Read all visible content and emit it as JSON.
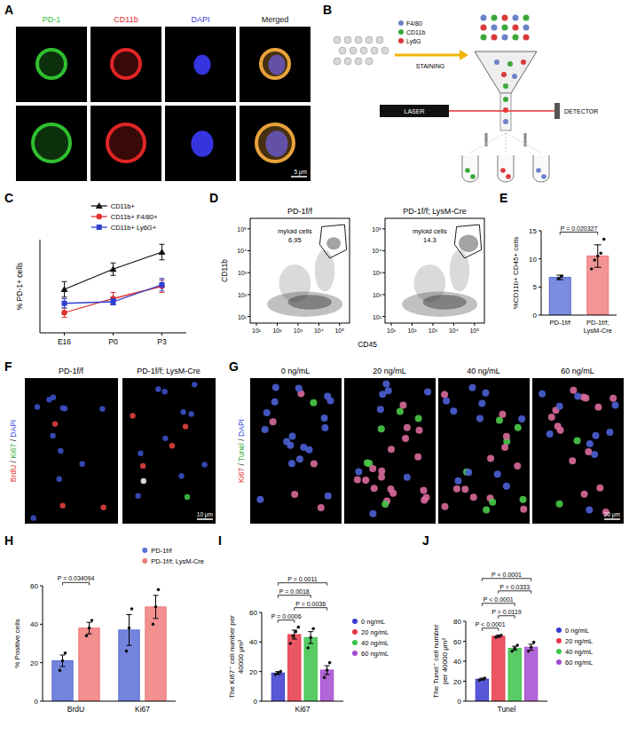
{
  "panels": {
    "A": {
      "label": "A",
      "channels": [
        "PD-1",
        "CD11b",
        "DAPI",
        "Merged"
      ],
      "colors": [
        "#2fbf2f",
        "#e02525",
        "#3535e0",
        "#111111"
      ],
      "scale_bar": "5 μm"
    },
    "B": {
      "label": "B",
      "markers": [
        "F4/80",
        "CD11b",
        "Ly6G"
      ],
      "colors": [
        "#6d83c9",
        "#3aa83a",
        "#d93a3a"
      ],
      "staining": "STAINING",
      "laser": "LASER",
      "detector": "DETECTOR"
    },
    "D": {
      "label": "D",
      "x_label": "CD45",
      "y_label": "CD11b",
      "xlim": [
        5,
        300000
      ],
      "ylim": [
        5,
        300000
      ],
      "xticks": [
        {
          "value": 10,
          "label": "10¹"
        },
        {
          "value": 100,
          "label": "10²"
        },
        {
          "value": 1000,
          "label": "10³"
        },
        {
          "value": 10000,
          "label": "10⁴"
        },
        {
          "value": 100000,
          "label": "10⁵"
        }
      ],
      "yticks": [
        {
          "value": 10,
          "label": "10¹"
        },
        {
          "value": 100,
          "label": "10²"
        },
        {
          "value": 1000,
          "label": "10³"
        },
        {
          "value": 10000,
          "label": "10⁴"
        },
        {
          "value": 100000,
          "label": "10⁵"
        }
      ],
      "plots": [
        {
          "title": "PD-1f/f",
          "gate": "myloid cells",
          "gate_value": 6.95
        },
        {
          "title": "PD-1f/f; LysM-Cre",
          "gate": "myloid cells",
          "gate_value": 14.3
        }
      ]
    },
    "F": {
      "label": "F",
      "stain": [
        "BrdU",
        "Ki67",
        "DAPI"
      ],
      "stain_colors": [
        "#e03030",
        "#30b030",
        "#3040e0"
      ],
      "stain_separator": " / ",
      "titles": [
        "PD-1f/f",
        "PD-1f/f; LysM-Cre"
      ],
      "scale_bar": "10 μm"
    },
    "G": {
      "label": "G",
      "stain": [
        "Ki67",
        "Tunel",
        "DAPI"
      ],
      "stain_colors": [
        "#e03030",
        "#30b030",
        "#3040e0"
      ],
      "stain_separator": " / ",
      "titles": [
        "0 ng/mL",
        "20 ng/mL",
        "40 ng/mL",
        "60 ng/mL"
      ],
      "scale_bar": "20 μm"
    }
  },
  "chart_data": [
    {
      "label": "C",
      "type": "line",
      "y_label": "% PD-1+ cells",
      "categories": [
        "E16",
        "P0",
        "P3"
      ],
      "ylim": [
        0,
        60
      ],
      "tick_labels": "x",
      "legend": "top",
      "series": [
        {
          "name": "CD11b+",
          "color": "#111111",
          "marker": "triangle",
          "values": [
            28,
            41,
            52
          ],
          "errors": [
            5,
            4,
            5
          ]
        },
        {
          "name": "CD11b+ F4/80+",
          "color": "#e0302f",
          "marker": "circle",
          "values": [
            13,
            22,
            30
          ],
          "errors": [
            3,
            4,
            4
          ]
        },
        {
          "name": "CD11b+ Ly6G+",
          "color": "#2f3fd0",
          "marker": "square",
          "values": [
            19,
            20,
            31
          ],
          "errors": [
            3,
            2,
            4
          ]
        }
      ]
    },
    {
      "label": "E",
      "type": "bar",
      "y_label": "%CD11b+ CD45+ cells",
      "categories": [
        "PD-1f/f",
        "PD-1f/f; LysM-Cre"
      ],
      "values": [
        6.7,
        10.5
      ],
      "errors": [
        0.4,
        2.0
      ],
      "points": [
        [
          6.5,
          6.9
        ],
        [
          8.2,
          9.8,
          10.5,
          11.0,
          13.5
        ]
      ],
      "colors": [
        "#5b6fd6",
        "#f07b7b"
      ],
      "ylim": [
        0,
        15
      ],
      "yticks": [
        0,
        5,
        10,
        15
      ],
      "comparisons": [
        {
          "from": 0,
          "to": 1,
          "label": "P = 0.020327"
        }
      ]
    },
    {
      "label": "H",
      "type": "bar",
      "y_label": "% Positive cells",
      "categories": [
        "BrdU",
        "Ki67"
      ],
      "ylim": [
        0,
        60
      ],
      "yticks": [
        0,
        20,
        40,
        60
      ],
      "legend": "top-right",
      "series": [
        {
          "name": "PD-1f/f",
          "color": "#5b6fd6",
          "values": [
            21,
            37
          ],
          "errors": [
            3,
            8
          ],
          "points": [
            [
              16,
              21,
              25
            ],
            [
              26,
              38,
              48
            ]
          ]
        },
        {
          "name": "PD-1f/f; LysM-Cre",
          "color": "#f07b7b",
          "values": [
            38,
            49
          ],
          "errors": [
            3,
            6
          ],
          "points": [
            [
              34,
              38,
              42
            ],
            [
              40,
              49,
              58
            ]
          ]
        }
      ],
      "comparisons": [
        {
          "category": 0,
          "from": 0,
          "to": 1,
          "label": "P = 0.034094"
        }
      ]
    },
    {
      "label": "I",
      "type": "bar",
      "y_label": "The Ki67⁺ cell number per 40000 μm²",
      "categories": [
        "Ki67"
      ],
      "ylim": [
        0,
        60
      ],
      "yticks": [
        0,
        20,
        40,
        60
      ],
      "legend": "right",
      "series": [
        {
          "name": "0 ng/mL",
          "color": "#3b3bd0",
          "values": [
            19
          ],
          "errors": [
            1
          ],
          "points": [
            [
              18,
              19,
              20
            ]
          ]
        },
        {
          "name": "20 ng/mL",
          "color": "#e8384a",
          "values": [
            45
          ],
          "errors": [
            3
          ],
          "points": [
            [
              39,
              44,
              47,
              50
            ]
          ]
        },
        {
          "name": "40 ng/mL",
          "color": "#3cc34a",
          "values": [
            43
          ],
          "errors": [
            4
          ],
          "points": [
            [
              36,
              43,
              49
            ]
          ]
        },
        {
          "name": "60 ng/mL",
          "color": "#a44bd0",
          "values": [
            21
          ],
          "errors": [
            3
          ],
          "points": [
            [
              16,
              21,
              26
            ]
          ]
        }
      ],
      "comparisons": [
        {
          "category": 0,
          "from": 0,
          "to": 1,
          "label": "P = 0.0006"
        },
        {
          "category": 0,
          "from": 1,
          "to": 3,
          "label": "P = 0.0036"
        },
        {
          "category": 0,
          "from": 0,
          "to": 2,
          "label": "P = 0.0018"
        },
        {
          "category": 0,
          "from": 0,
          "to": 3,
          "label": "P = 0.0011"
        }
      ]
    },
    {
      "label": "J",
      "type": "bar",
      "y_label": "The Tunel⁺ cell number per 40000 μm²",
      "categories": [
        "Tunel"
      ],
      "ylim": [
        0,
        80
      ],
      "yticks": [
        0,
        20,
        40,
        60,
        80
      ],
      "legend": "right",
      "series": [
        {
          "name": "0 ng/mL",
          "color": "#3b3bd0",
          "values": [
            22
          ],
          "errors": [
            1
          ],
          "points": [
            [
              21,
              22,
              23
            ]
          ]
        },
        {
          "name": "20 ng/mL",
          "color": "#e8384a",
          "values": [
            65
          ],
          "errors": [
            1
          ],
          "points": [
            [
              64,
              65,
              66
            ]
          ]
        },
        {
          "name": "40 ng/mL",
          "color": "#3cc34a",
          "values": [
            53
          ],
          "errors": [
            2
          ],
          "points": [
            [
              50,
              53,
              56
            ]
          ]
        },
        {
          "name": "60 ng/mL",
          "color": "#a44bd0",
          "values": [
            54
          ],
          "errors": [
            3
          ],
          "points": [
            [
              50,
              54,
              59
            ]
          ]
        }
      ],
      "comparisons": [
        {
          "category": 0,
          "from": 0,
          "to": 1,
          "label": "P < 0.0001"
        },
        {
          "category": 0,
          "from": 1,
          "to": 2,
          "label": "P = 0.0119"
        },
        {
          "category": 0,
          "from": 0,
          "to": 2,
          "label": "P < 0.0001"
        },
        {
          "category": 0,
          "from": 1,
          "to": 3,
          "label": "P = 0.0333"
        },
        {
          "category": 0,
          "from": 0,
          "to": 3,
          "label": "P < 0.0001"
        }
      ]
    }
  ]
}
